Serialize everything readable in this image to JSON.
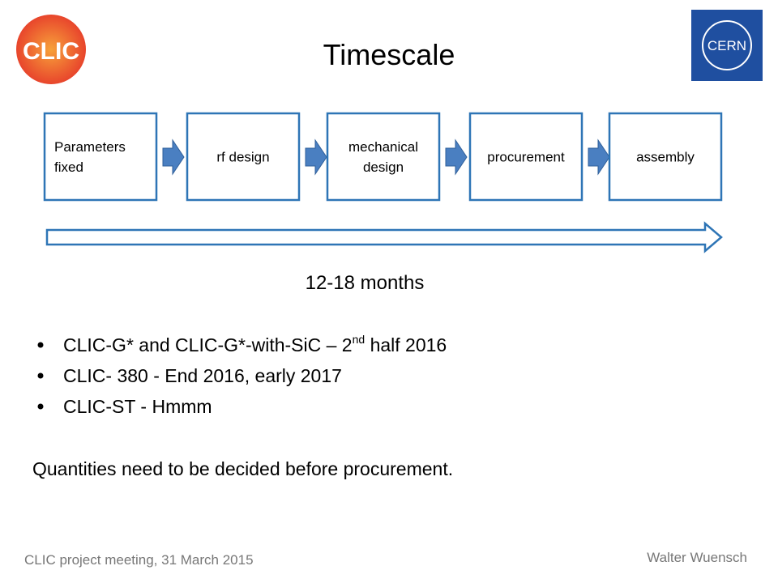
{
  "logos": {
    "clic": "CLIC",
    "cern": "CERN"
  },
  "title": "Timescale",
  "process": [
    {
      "lines": [
        "Parameters",
        "fixed"
      ]
    },
    {
      "lines": [
        "rf design"
      ]
    },
    {
      "lines": [
        "mechanical",
        "design"
      ]
    },
    {
      "lines": [
        "procurement"
      ]
    },
    {
      "lines": [
        "assembly"
      ]
    }
  ],
  "duration": "12-18 months",
  "bullets": [
    {
      "text": "CLIC-G* and CLIC-G*-with-SiC – 2",
      "sup": "nd",
      "rest": " half 2016"
    },
    {
      "text": "CLIC- 380 - End 2016, early 2017"
    },
    {
      "text": "CLIC-ST - Hmmm"
    }
  ],
  "note": "Quantities need to be decided before procurement.",
  "footer": {
    "left": "CLIC project meeting, 31 March 2015",
    "right": "Walter Wuensch"
  }
}
